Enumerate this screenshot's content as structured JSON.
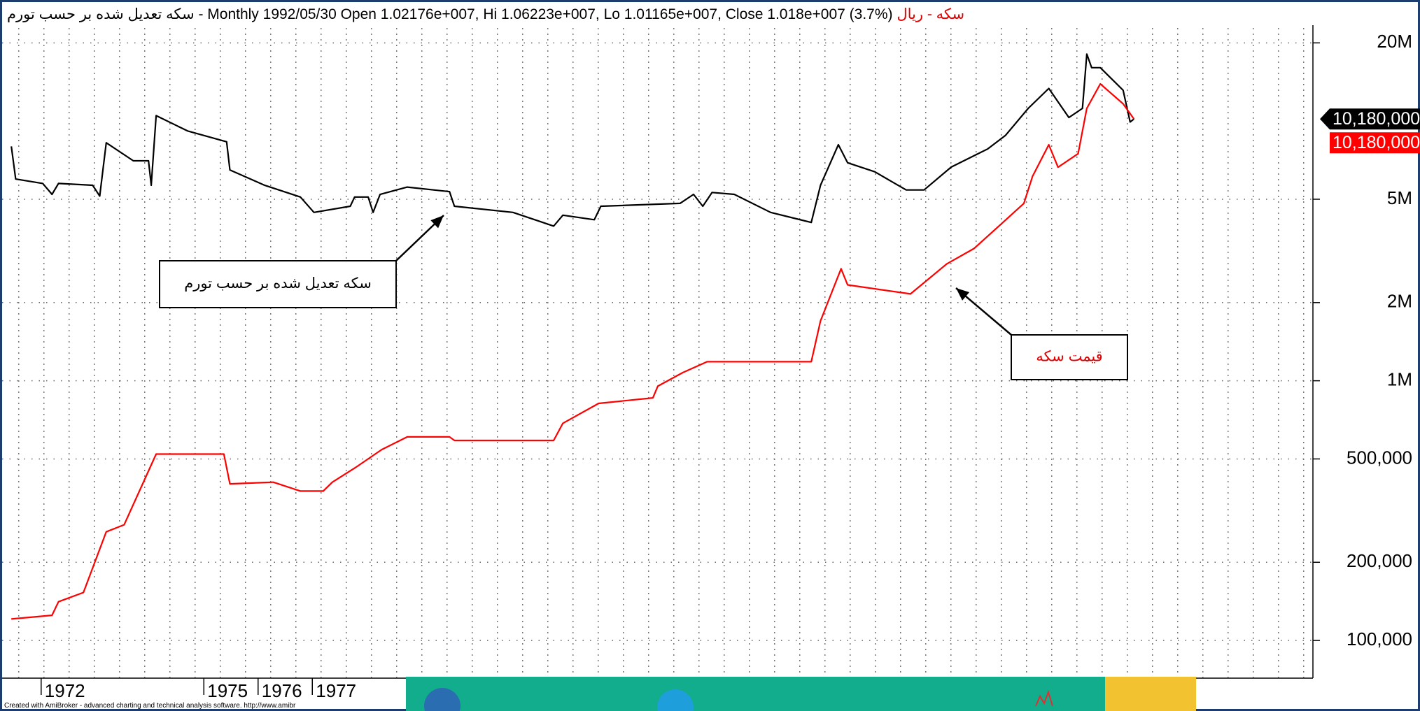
{
  "chart_data": {
    "type": "line",
    "title": "- Monthly 1992/05/30 Open 1.02176e+007, Hi 1.06223e+007, Lo 1.01165e+007, Close 1.018e+007 (3.7%)",
    "ticker": "سکه - ریال",
    "footer": "Created with AmiBroker - advanced charting and technical analysis software. http://www.amibr",
    "log_scale": true,
    "grid": true,
    "xlim": [
      1971.28,
      1995.45
    ],
    "xticks": [
      1972,
      1975,
      1976,
      1977
    ],
    "ylim": [
      71600,
      23400000
    ],
    "yticks": [
      {
        "value": 100000,
        "label": "100,000"
      },
      {
        "value": 200000,
        "label": "200,000"
      },
      {
        "value": 500000,
        "label": "500,000"
      },
      {
        "value": 1000000,
        "label": "1M"
      },
      {
        "value": 2000000,
        "label": "2M"
      },
      {
        "value": 5000000,
        "label": "5M"
      },
      {
        "value": 20000000,
        "label": "20M"
      }
    ],
    "series": [
      {
        "name": "سکه تعدیل شده بر حسب تورم",
        "color": "#000000",
        "last_label": "10,180,000",
        "x": [
          1971.45,
          1971.53,
          1972.03,
          1972.2,
          1972.32,
          1972.95,
          1973.08,
          1973.2,
          1973.7,
          1973.98,
          1974.03,
          1974.12,
          1974.7,
          1975.42,
          1975.48,
          1976.12,
          1976.78,
          1977.03,
          1977.7,
          1977.78,
          1978.03,
          1978.12,
          1978.25,
          1978.75,
          1979.53,
          1979.62,
          1980.7,
          1981.45,
          1981.62,
          1982.2,
          1982.32,
          1983.78,
          1984.03,
          1984.2,
          1984.37,
          1984.78,
          1985.45,
          1986.2,
          1986.37,
          1986.7,
          1986.87,
          1987.37,
          1987.95,
          1988.28,
          1988.78,
          1989.45,
          1989.78,
          1990.2,
          1990.58,
          1990.95,
          1991.2,
          1991.28,
          1991.37,
          1991.53,
          1991.95,
          1992.08,
          1992.15
        ],
        "values": [
          7990000,
          5980000,
          5750000,
          5220000,
          5750000,
          5660000,
          5140000,
          8250000,
          7030000,
          7030000,
          5660000,
          10490000,
          9160000,
          8320000,
          6480000,
          5660000,
          5100000,
          4450000,
          4700000,
          5100000,
          5100000,
          4450000,
          5220000,
          5570000,
          5350000,
          4700000,
          4450000,
          3940000,
          4340000,
          4170000,
          4700000,
          4820000,
          5220000,
          4700000,
          5310000,
          5220000,
          4450000,
          4070000,
          5660000,
          8110000,
          6910000,
          6380000,
          5430000,
          5430000,
          6650000,
          7800000,
          8800000,
          11190000,
          13350000,
          10320000,
          11190000,
          18110000,
          16050000,
          16050000,
          13140000,
          9920000,
          10180000
        ]
      },
      {
        "name": "قیمت سکه",
        "color": "#ff0000",
        "last_label": "10,180,000",
        "x": [
          1971.45,
          1972.2,
          1972.32,
          1972.78,
          1973.2,
          1973.53,
          1974.12,
          1975.37,
          1975.48,
          1976.28,
          1976.78,
          1977.2,
          1977.37,
          1977.82,
          1978.28,
          1978.75,
          1979.53,
          1979.62,
          1981.45,
          1981.62,
          1982.28,
          1983.28,
          1983.37,
          1983.83,
          1984.28,
          1986.2,
          1986.37,
          1986.75,
          1986.87,
          1988.03,
          1988.7,
          1989.2,
          1989.7,
          1990.12,
          1990.28,
          1990.58,
          1990.75,
          1991.12,
          1991.28,
          1991.53,
          1991.95,
          1992.15
        ],
        "values": [
          121000,
          125000,
          141000,
          153000,
          262000,
          279000,
          522000,
          522000,
          401000,
          407000,
          376000,
          376000,
          407000,
          467000,
          543000,
          608000,
          608000,
          589000,
          589000,
          686000,
          818000,
          859000,
          953000,
          1075000,
          1184000,
          1184000,
          1700000,
          2700000,
          2340000,
          2160000,
          2820000,
          3230000,
          4010000,
          4820000,
          6130000,
          8110000,
          6640000,
          7490000,
          11190000,
          13900000,
          11650000,
          10180000
        ]
      }
    ]
  }
}
